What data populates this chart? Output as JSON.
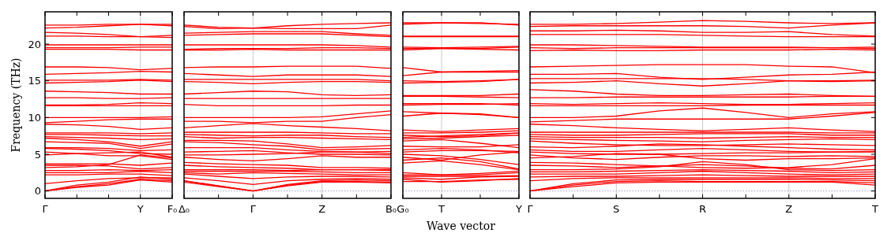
{
  "chart_data": [
    {
      "type": "line",
      "ylabel": "Frequency (THz)",
      "categories": [
        "Γ",
        null,
        null,
        "Y",
        "F₀"
      ],
      "ylim": [
        -1,
        24.4
      ],
      "yticks": [
        0,
        5,
        10,
        15,
        20
      ],
      "color": "#ff0000",
      "ref_lines": [
        {
          "axis": "y",
          "value": 0,
          "color": "#8080c0",
          "line_style": "dotted"
        },
        {
          "axis": "x",
          "value": "Y",
          "color": "#bbbbbb"
        }
      ],
      "series": [
        {
          "values": [
            22.6,
            22.6,
            22.7,
            22.7,
            22.5
          ]
        },
        {
          "values": [
            22.2,
            22.3,
            22.5,
            22.7,
            22.7
          ]
        },
        {
          "values": [
            21.6,
            21.5,
            21.3,
            21.0,
            21.2
          ]
        },
        {
          "values": [
            21.1,
            21.1,
            21.0,
            21.0,
            20.9
          ]
        },
        {
          "values": [
            19.9,
            19.9,
            19.9,
            19.9,
            19.9
          ]
        },
        {
          "values": [
            19.5,
            19.5,
            19.5,
            19.6,
            19.6
          ]
        },
        {
          "values": [
            19.3,
            19.3,
            19.3,
            19.2,
            19.2
          ]
        },
        {
          "values": [
            16.9,
            16.9,
            16.8,
            16.5,
            16.7
          ]
        },
        {
          "values": [
            15.9,
            16.0,
            16.1,
            16.3,
            16.2
          ]
        },
        {
          "values": [
            15.1,
            15.1,
            15.1,
            15.2,
            15.1
          ]
        },
        {
          "values": [
            14.7,
            14.8,
            14.9,
            15.1,
            14.9
          ]
        },
        {
          "values": [
            13.6,
            13.5,
            13.4,
            13.2,
            13.2
          ]
        },
        {
          "values": [
            12.7,
            12.7,
            12.6,
            12.6,
            12.7
          ]
        },
        {
          "values": [
            11.7,
            11.7,
            11.8,
            12.0,
            11.9
          ]
        },
        {
          "values": [
            11.6,
            11.6,
            11.6,
            11.6,
            11.6
          ]
        },
        {
          "values": [
            10.0,
            10.0,
            10.0,
            10.0,
            10.1
          ]
        },
        {
          "values": [
            9.3,
            9.5,
            9.7,
            9.8,
            9.8
          ]
        },
        {
          "values": [
            9.1,
            9.0,
            8.8,
            8.4,
            8.6
          ]
        },
        {
          "values": [
            7.9,
            7.9,
            7.9,
            7.8,
            7.9
          ]
        },
        {
          "values": [
            7.7,
            7.7,
            7.6,
            7.5,
            7.5
          ]
        },
        {
          "values": [
            7.4,
            7.3,
            7.2,
            7.0,
            7.1
          ]
        },
        {
          "values": [
            7.2,
            7.0,
            6.7,
            6.1,
            6.7
          ]
        },
        {
          "values": [
            6.7,
            6.6,
            6.5,
            5.8,
            6.4
          ]
        },
        {
          "values": [
            5.9,
            5.9,
            5.8,
            5.5,
            5.6
          ]
        },
        {
          "values": [
            5.8,
            5.7,
            5.5,
            5.1,
            5.0
          ]
        },
        {
          "values": [
            5.3,
            5.1,
            4.8,
            4.8,
            4.3
          ]
        },
        {
          "values": [
            4.9,
            5.1,
            5.2,
            5.3,
            4.6
          ]
        },
        {
          "values": [
            3.7,
            3.7,
            3.7,
            3.5,
            3.8
          ]
        },
        {
          "values": [
            3.5,
            3.5,
            3.4,
            3.0,
            3.2
          ]
        },
        {
          "values": [
            3.2,
            3.3,
            3.6,
            4.9,
            4.5
          ]
        },
        {
          "values": [
            2.8,
            2.8,
            2.9,
            2.8,
            2.9
          ]
        },
        {
          "values": [
            2.5,
            2.5,
            2.5,
            2.7,
            2.5
          ]
        },
        {
          "values": [
            2.2,
            2.2,
            2.3,
            2.3,
            2.1
          ]
        },
        {
          "values": [
            1.0,
            1.4,
            1.7,
            1.8,
            1.8
          ]
        },
        {
          "values": [
            0,
            0.8,
            1.2,
            1.9,
            1.6
          ]
        },
        {
          "values": [
            0,
            0.6,
            1.0,
            1.6,
            1.4
          ]
        },
        {
          "values": [
            0,
            0.5,
            0.8,
            1.5,
            1.2
          ]
        }
      ]
    },
    {
      "type": "line",
      "tick_labels": "x",
      "categories": [
        "Δ₀",
        null,
        "Γ",
        null,
        "Z",
        null,
        "B₀"
      ],
      "ylim": [
        -1,
        24.4
      ],
      "yticks": [
        0,
        5,
        10,
        15,
        20
      ],
      "color": "#ff0000",
      "ref_lines": [
        {
          "axis": "y",
          "value": 0,
          "color": "#8080c0",
          "line_style": "dotted"
        },
        {
          "axis": "x",
          "value": "Γ",
          "color": "#bbbbbb"
        },
        {
          "axis": "x",
          "value": "Z",
          "color": "#bbbbbb"
        }
      ],
      "series": [
        {
          "values": [
            22.6,
            22.3,
            22.2,
            22.5,
            22.7,
            22.8,
            22.9
          ]
        },
        {
          "values": [
            22.4,
            22.1,
            22.2,
            22.1,
            22.1,
            22.1,
            22.6
          ]
        },
        {
          "values": [
            21.5,
            21.6,
            21.7,
            21.7,
            21.7,
            21.4,
            21.2
          ]
        },
        {
          "values": [
            21.2,
            21.3,
            21.4,
            21.4,
            21.4,
            21.2,
            21.0
          ]
        },
        {
          "values": [
            19.9,
            19.9,
            19.9,
            19.9,
            19.9,
            19.8,
            19.6
          ]
        },
        {
          "values": [
            19.3,
            19.4,
            19.4,
            19.4,
            19.5,
            19.5,
            19.4
          ]
        },
        {
          "values": [
            19.2,
            19.2,
            19.3,
            19.2,
            19.2,
            19.2,
            19.2
          ]
        },
        {
          "values": [
            16.8,
            16.9,
            16.9,
            17.0,
            17.0,
            17.0,
            16.7
          ]
        },
        {
          "values": [
            16.0,
            15.8,
            15.6,
            15.8,
            15.8,
            15.8,
            15.6
          ]
        },
        {
          "values": [
            15.2,
            15.2,
            15.2,
            15.2,
            15.2,
            15.2,
            15.0
          ]
        },
        {
          "values": [
            14.9,
            14.8,
            14.6,
            14.8,
            14.9,
            14.9,
            14.8
          ]
        },
        {
          "values": [
            13.2,
            13.4,
            13.6,
            13.5,
            13.1,
            13.0,
            13.1
          ]
        },
        {
          "values": [
            12.6,
            12.6,
            12.6,
            12.6,
            12.6,
            12.6,
            12.6
          ]
        },
        {
          "values": [
            11.8,
            11.6,
            11.6,
            11.6,
            11.6,
            11.7,
            11.7
          ]
        },
        {
          "values": [
            10.0,
            10.0,
            10.0,
            10.0,
            10.1,
            10.5,
            10.9
          ]
        },
        {
          "values": [
            9.5,
            9.5,
            9.3,
            9.5,
            9.5,
            10.0,
            10.4
          ]
        },
        {
          "values": [
            8.6,
            8.9,
            9.2,
            8.9,
            8.7,
            8.5,
            8.2
          ]
        },
        {
          "values": [
            8.0,
            8.0,
            8.0,
            8.0,
            7.9,
            7.8,
            7.8
          ]
        },
        {
          "values": [
            7.7,
            7.6,
            7.5,
            7.6,
            7.6,
            7.4,
            7.3
          ]
        },
        {
          "values": [
            7.4,
            7.2,
            7.3,
            7.3,
            7.2,
            7.1,
            7.0
          ]
        },
        {
          "values": [
            6.9,
            6.9,
            6.8,
            6.4,
            5.9,
            6.0,
            6.2
          ]
        },
        {
          "values": [
            6.7,
            6.6,
            6.3,
            6.1,
            5.6,
            5.7,
            5.8
          ]
        },
        {
          "values": [
            5.9,
            5.9,
            5.9,
            5.6,
            5.4,
            5.3,
            5.1
          ]
        },
        {
          "values": [
            5.3,
            5.4,
            5.5,
            5.2,
            5.0,
            5.0,
            4.9
          ]
        },
        {
          "values": [
            4.9,
            4.9,
            5.0,
            5.1,
            5.3,
            5.3,
            5.4
          ]
        },
        {
          "values": [
            4.6,
            4.3,
            4.1,
            4.4,
            4.8,
            4.6,
            4.6
          ]
        },
        {
          "values": [
            3.9,
            3.7,
            3.6,
            3.5,
            3.2,
            3.2,
            3.1
          ]
        },
        {
          "values": [
            3.5,
            3.3,
            3.2,
            3.1,
            2.9,
            2.9,
            2.9
          ]
        },
        {
          "values": [
            2.9,
            2.9,
            2.9,
            2.8,
            2.9,
            2.9,
            2.8
          ]
        },
        {
          "values": [
            2.7,
            2.7,
            2.7,
            2.7,
            2.6,
            2.5,
            2.5
          ]
        },
        {
          "values": [
            2.5,
            2.3,
            2.5,
            2.4,
            2.3,
            2.2,
            2.2
          ]
        },
        {
          "values": [
            2.3,
            2.0,
            1.7,
            1.9,
            2.0,
            2.0,
            1.9
          ]
        },
        {
          "values": [
            1.8,
            1.4,
            0.9,
            1.4,
            1.6,
            1.7,
            1.6
          ]
        },
        {
          "values": [
            1.4,
            0.7,
            0,
            0.9,
            1.4,
            1.5,
            1.4
          ]
        },
        {
          "values": [
            1.4,
            0.7,
            0,
            0.8,
            1.3,
            1.3,
            1.2
          ]
        },
        {
          "values": [
            1.2,
            0.6,
            0,
            0.7,
            1.2,
            1.2,
            1.1
          ]
        }
      ]
    },
    {
      "type": "line",
      "tick_labels": "x",
      "xlabel": "Wave vector",
      "categories": [
        "G₀",
        "T",
        null,
        "Y"
      ],
      "ylim": [
        -1,
        24.4
      ],
      "yticks": [
        0,
        5,
        10,
        15,
        20
      ],
      "color": "#ff0000",
      "ref_lines": [
        {
          "axis": "y",
          "value": 0,
          "color": "#8080c0",
          "line_style": "dotted"
        },
        {
          "axis": "x",
          "value": "T",
          "color": "#bbbbbb"
        }
      ],
      "series": [
        {
          "values": [
            22.9,
            22.9,
            22.8,
            22.7
          ]
        },
        {
          "values": [
            22.7,
            22.9,
            22.9,
            22.6
          ]
        },
        {
          "values": [
            21.1,
            21.1,
            21.1,
            21.1
          ]
        },
        {
          "values": [
            21.0,
            21.0,
            21.0,
            21.0
          ]
        },
        {
          "values": [
            19.6,
            19.5,
            19.6,
            19.7
          ]
        },
        {
          "values": [
            19.4,
            19.4,
            19.3,
            19.2
          ]
        },
        {
          "values": [
            19.2,
            19.4,
            19.4,
            19.6
          ]
        },
        {
          "values": [
            16.8,
            16.2,
            16.3,
            16.4
          ]
        },
        {
          "values": [
            15.7,
            16.2,
            16.2,
            16.2
          ]
        },
        {
          "values": [
            15.0,
            14.9,
            15.0,
            15.2
          ]
        },
        {
          "values": [
            14.7,
            14.8,
            14.9,
            15.2
          ]
        },
        {
          "values": [
            13.0,
            13.0,
            13.0,
            13.2
          ]
        },
        {
          "values": [
            12.9,
            12.9,
            12.8,
            12.7
          ]
        },
        {
          "values": [
            11.9,
            11.9,
            11.9,
            11.7
          ]
        },
        {
          "values": [
            11.7,
            11.8,
            11.8,
            11.9
          ]
        },
        {
          "values": [
            10.8,
            10.6,
            10.5,
            10.0
          ]
        },
        {
          "values": [
            10.2,
            10.6,
            10.4,
            10.0
          ]
        },
        {
          "values": [
            8.3,
            8.1,
            8.3,
            8.5
          ]
        },
        {
          "values": [
            7.9,
            7.9,
            8.0,
            8.2
          ]
        },
        {
          "values": [
            7.6,
            7.4,
            7.5,
            7.9
          ]
        },
        {
          "values": [
            7.3,
            7.5,
            7.7,
            7.9
          ]
        },
        {
          "values": [
            7.1,
            7.2,
            7.4,
            7.6
          ]
        },
        {
          "values": [
            6.8,
            7.0,
            6.5,
            5.9
          ]
        },
        {
          "values": [
            6.1,
            6.0,
            6.0,
            6.3
          ]
        },
        {
          "values": [
            5.6,
            5.8,
            5.6,
            5.2
          ]
        },
        {
          "values": [
            5.3,
            5.5,
            5.5,
            5.4
          ]
        },
        {
          "values": [
            5.0,
            4.8,
            4.3,
            3.6
          ]
        },
        {
          "values": [
            4.6,
            4.2,
            4.9,
            5.3
          ]
        },
        {
          "values": [
            4.2,
            4.5,
            4.0,
            3.0
          ]
        },
        {
          "values": [
            3.8,
            4.1,
            3.6,
            2.9
          ]
        },
        {
          "values": [
            2.5,
            2.2,
            2.4,
            2.7
          ]
        },
        {
          "values": [
            2.2,
            2.2,
            2.2,
            2.5
          ]
        },
        {
          "values": [
            2.0,
            2.0,
            2.0,
            2.1
          ]
        },
        {
          "values": [
            1.8,
            1.6,
            1.9,
            2.0
          ]
        },
        {
          "values": [
            1.6,
            1.2,
            1.4,
            1.7
          ]
        },
        {
          "values": [
            1.3,
            1.3,
            1.5,
            1.6
          ]
        }
      ]
    },
    {
      "type": "line",
      "tick_labels": "x",
      "categories": [
        "Γ",
        null,
        "S",
        null,
        "R",
        null,
        "Z",
        null,
        "T"
      ],
      "ylim": [
        -1,
        24.4
      ],
      "yticks": [
        0,
        5,
        10,
        15,
        20
      ],
      "color": "#ff0000",
      "ref_lines": [
        {
          "axis": "y",
          "value": 0,
          "color": "#8080c0",
          "line_style": "dotted"
        },
        {
          "axis": "x",
          "value": "S",
          "color": "#bbbbbb"
        },
        {
          "axis": "x",
          "value": "R",
          "color": "#bbbbbb"
        },
        {
          "axis": "x",
          "value": "Z",
          "color": "#bbbbbb"
        }
      ],
      "series": [
        {
          "values": [
            22.7,
            22.7,
            22.8,
            23.0,
            23.2,
            23.1,
            22.9,
            22.8,
            22.9
          ]
        },
        {
          "values": [
            22.4,
            22.5,
            22.5,
            22.5,
            22.5,
            22.4,
            22.2,
            22.6,
            22.9
          ]
        },
        {
          "values": [
            21.8,
            21.8,
            21.9,
            21.8,
            21.6,
            21.6,
            21.7,
            21.3,
            21.1
          ]
        },
        {
          "values": [
            21.3,
            21.3,
            21.3,
            21.3,
            21.2,
            21.1,
            21.0,
            21.0,
            21.0
          ]
        },
        {
          "values": [
            19.9,
            19.9,
            19.8,
            19.7,
            19.6,
            19.6,
            19.6,
            19.5,
            19.4
          ]
        },
        {
          "values": [
            19.5,
            19.4,
            19.5,
            19.5,
            19.5,
            19.5,
            19.5,
            19.5,
            19.6
          ]
        },
        {
          "values": [
            19.1,
            19.2,
            19.1,
            19.1,
            19.2,
            19.2,
            19.2,
            19.3,
            19.2
          ]
        },
        {
          "values": [
            16.9,
            17.0,
            17.1,
            17.2,
            17.2,
            17.2,
            17.0,
            16.9,
            16.1
          ]
        },
        {
          "values": [
            15.9,
            15.9,
            16.0,
            15.5,
            15.2,
            15.5,
            15.8,
            15.9,
            16.2
          ]
        },
        {
          "values": [
            15.3,
            15.3,
            15.3,
            15.3,
            15.3,
            15.2,
            15.0,
            15.0,
            15.1
          ]
        },
        {
          "values": [
            14.7,
            14.8,
            15.0,
            14.6,
            14.3,
            14.6,
            15.0,
            14.9,
            15.0
          ]
        },
        {
          "values": [
            13.8,
            13.6,
            13.2,
            13.0,
            13.0,
            13.1,
            13.2,
            13.0,
            12.9
          ]
        },
        {
          "values": [
            12.7,
            12.7,
            12.8,
            12.8,
            12.8,
            12.8,
            12.8,
            12.9,
            12.9
          ]
        },
        {
          "values": [
            11.9,
            11.8,
            11.9,
            12.0,
            11.9,
            11.8,
            11.8,
            11.9,
            12.0
          ]
        },
        {
          "values": [
            11.6,
            11.6,
            11.6,
            11.6,
            11.6,
            11.7,
            11.7,
            11.7,
            11.7
          ]
        },
        {
          "values": [
            10.0,
            10.0,
            10.2,
            10.9,
            11.3,
            10.7,
            10.0,
            10.5,
            10.8
          ]
        },
        {
          "values": [
            9.4,
            9.6,
            9.8,
            9.8,
            9.8,
            9.8,
            9.8,
            10.2,
            10.7
          ]
        },
        {
          "values": [
            9.1,
            8.9,
            8.6,
            8.4,
            8.2,
            8.4,
            8.6,
            8.3,
            8.1
          ]
        },
        {
          "values": [
            8.0,
            8.0,
            8.0,
            8.0,
            8.0,
            8.0,
            8.0,
            7.9,
            7.9
          ]
        },
        {
          "values": [
            7.7,
            7.6,
            7.6,
            7.7,
            7.8,
            7.8,
            7.8,
            7.6,
            7.6
          ]
        },
        {
          "values": [
            7.4,
            7.3,
            7.3,
            7.3,
            7.2,
            7.3,
            7.4,
            7.3,
            7.3
          ]
        },
        {
          "values": [
            7.1,
            7.0,
            6.9,
            6.8,
            6.7,
            6.9,
            7.0,
            7.1,
            7.0
          ]
        },
        {
          "values": [
            6.8,
            6.5,
            6.3,
            6.2,
            6.2,
            6.3,
            6.4,
            6.3,
            6.2
          ]
        },
        {
          "values": [
            6.0,
            5.9,
            6.1,
            6.4,
            6.3,
            6.1,
            5.9,
            5.7,
            5.6
          ]
        },
        {
          "values": [
            5.6,
            5.4,
            5.4,
            5.6,
            5.8,
            5.6,
            5.4,
            5.3,
            5.4
          ]
        },
        {
          "values": [
            5.3,
            5.1,
            5.0,
            5.0,
            5.1,
            5.2,
            5.2,
            5.3,
            5.3
          ]
        },
        {
          "values": [
            4.9,
            4.5,
            4.3,
            4.6,
            4.8,
            4.8,
            4.7,
            4.8,
            4.7
          ]
        },
        {
          "values": [
            4.5,
            4.7,
            5.1,
            5.0,
            4.4,
            4.2,
            4.4,
            4.4,
            4.5
          ]
        },
        {
          "values": [
            3.9,
            3.8,
            3.6,
            3.4,
            3.2,
            3.1,
            3.2,
            3.6,
            4.4
          ]
        },
        {
          "values": [
            3.5,
            3.4,
            3.2,
            3.4,
            3.6,
            3.4,
            3.1,
            3.0,
            3.5
          ]
        },
        {
          "values": [
            2.9,
            2.9,
            3.0,
            3.3,
            4.0,
            3.6,
            2.9,
            2.8,
            2.9
          ]
        },
        {
          "values": [
            2.6,
            2.6,
            2.7,
            2.8,
            2.9,
            2.8,
            2.7,
            2.5,
            2.6
          ]
        },
        {
          "values": [
            2.3,
            2.3,
            2.3,
            2.5,
            2.7,
            2.5,
            2.3,
            2.2,
            2.3
          ]
        },
        {
          "values": [
            1.9,
            2.0,
            2.0,
            2.1,
            2.2,
            2.1,
            2.0,
            2.0,
            2.0
          ]
        },
        {
          "values": [
            1.4,
            1.7,
            1.8,
            1.8,
            1.8,
            1.8,
            1.8,
            1.7,
            1.7
          ]
        },
        {
          "values": [
            0,
            1.0,
            1.5,
            1.6,
            1.6,
            1.6,
            1.6,
            1.5,
            1.4
          ]
        },
        {
          "values": [
            0,
            0.8,
            1.3,
            1.4,
            1.3,
            1.3,
            1.3,
            1.3,
            1.1
          ]
        },
        {
          "values": [
            0,
            0.6,
            1.1,
            1.2,
            1.2,
            1.2,
            1.2,
            1.2,
            0.8
          ]
        }
      ]
    }
  ]
}
